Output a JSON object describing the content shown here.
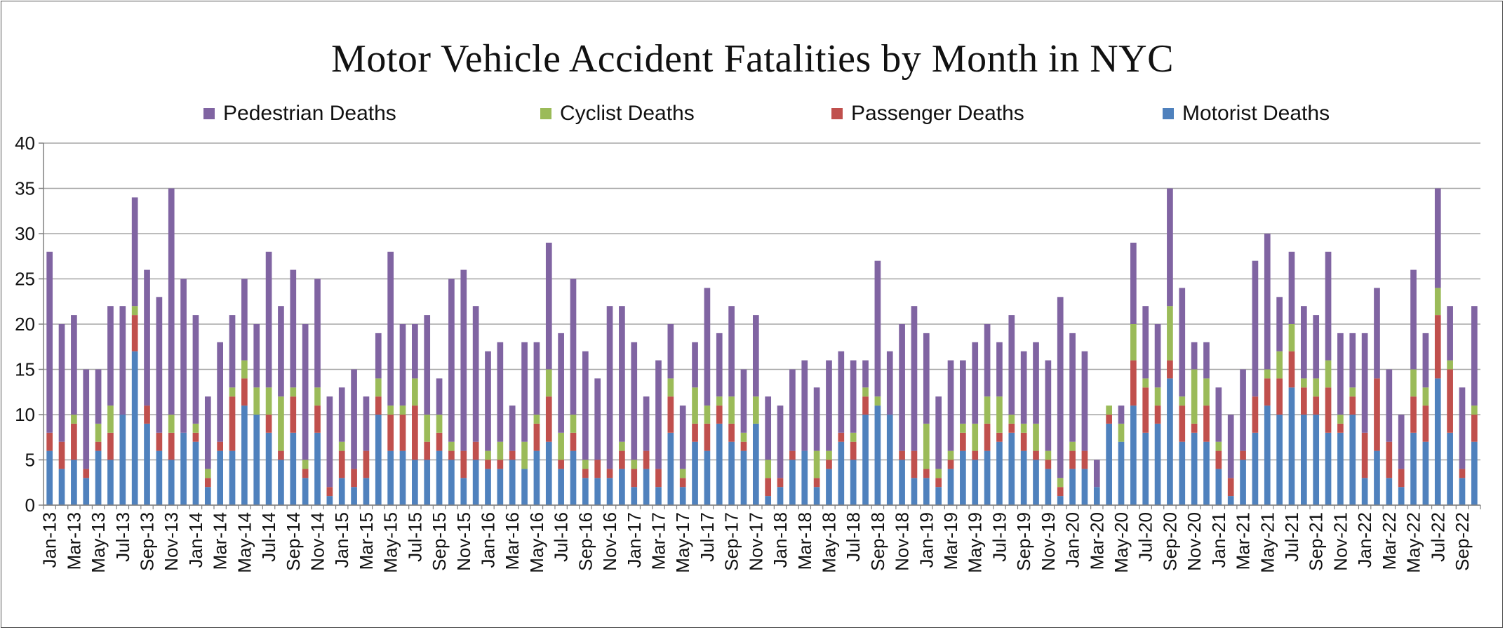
{
  "chart_data": {
    "type": "bar",
    "stacked": true,
    "title": "Motor Vehicle Accident Fatalities by Month in NYC",
    "xlabel": "",
    "ylabel": "",
    "ylim": [
      0,
      40
    ],
    "yticks": [
      0,
      5,
      10,
      15,
      20,
      25,
      30,
      35,
      40
    ],
    "grid": true,
    "legend_position": "top",
    "legend_order": [
      "Pedestrian Deaths",
      "Cyclist Deaths",
      "Passenger Deaths",
      "Motorist Deaths"
    ],
    "categories": [
      "Jan-13",
      "Feb-13",
      "Mar-13",
      "Apr-13",
      "May-13",
      "Jun-13",
      "Jul-13",
      "Aug-13",
      "Sep-13",
      "Oct-13",
      "Nov-13",
      "Dec-13",
      "Jan-14",
      "Feb-14",
      "Mar-14",
      "Apr-14",
      "May-14",
      "Jun-14",
      "Jul-14",
      "Aug-14",
      "Sep-14",
      "Oct-14",
      "Nov-14",
      "Dec-14",
      "Jan-15",
      "Feb-15",
      "Mar-15",
      "Apr-15",
      "May-15",
      "Jun-15",
      "Jul-15",
      "Aug-15",
      "Sep-15",
      "Oct-15",
      "Nov-15",
      "Dec-15",
      "Jan-16",
      "Feb-16",
      "Mar-16",
      "Apr-16",
      "May-16",
      "Jun-16",
      "Jul-16",
      "Aug-16",
      "Sep-16",
      "Oct-16",
      "Nov-16",
      "Dec-16",
      "Jan-17",
      "Feb-17",
      "Mar-17",
      "Apr-17",
      "May-17",
      "Jun-17",
      "Jul-17",
      "Aug-17",
      "Sep-17",
      "Oct-17",
      "Nov-17",
      "Dec-17",
      "Jan-18",
      "Feb-18",
      "Mar-18",
      "Apr-18",
      "May-18",
      "Jun-18",
      "Jul-18",
      "Aug-18",
      "Sep-18",
      "Oct-18",
      "Nov-18",
      "Dec-18",
      "Jan-19",
      "Feb-19",
      "Mar-19",
      "Apr-19",
      "May-19",
      "Jun-19",
      "Jul-19",
      "Aug-19",
      "Sep-19",
      "Oct-19",
      "Nov-19",
      "Dec-19",
      "Jan-20",
      "Feb-20",
      "Mar-20",
      "Apr-20",
      "May-20",
      "Jun-20",
      "Jul-20",
      "Aug-20",
      "Sep-20",
      "Oct-20",
      "Nov-20",
      "Dec-20",
      "Jan-21",
      "Feb-21",
      "Mar-21",
      "Apr-21",
      "May-21",
      "Jun-21",
      "Jul-21",
      "Aug-21",
      "Sep-21",
      "Oct-21",
      "Nov-21",
      "Dec-21",
      "Jan-22",
      "Feb-22",
      "Mar-22",
      "Apr-22",
      "May-22",
      "Jun-22",
      "Jul-22",
      "Aug-22",
      "Sep-22",
      "Oct-22"
    ],
    "series": [
      {
        "name": "Motorist Deaths",
        "color": "#4F81BD",
        "values": [
          6,
          4,
          5,
          3,
          6,
          5,
          10,
          17,
          9,
          6,
          5,
          8,
          7,
          2,
          6,
          6,
          11,
          10,
          8,
          5,
          8,
          3,
          8,
          1,
          3,
          2,
          3,
          10,
          6,
          6,
          5,
          5,
          6,
          5,
          3,
          5,
          4,
          4,
          5,
          4,
          6,
          7,
          4,
          6,
          3,
          3,
          3,
          4,
          2,
          4,
          2,
          8,
          2,
          7,
          6,
          9,
          7,
          6,
          9,
          1,
          2,
          5,
          6,
          2,
          4,
          7,
          5,
          10,
          11,
          10,
          5,
          3,
          3,
          2,
          4,
          6,
          5,
          6,
          7,
          8,
          6,
          5,
          4,
          1,
          4,
          4,
          2,
          9,
          7,
          11,
          8,
          9,
          14,
          7,
          8,
          7,
          4,
          1,
          5,
          8,
          11,
          10,
          13,
          10,
          10,
          8,
          8,
          10,
          3,
          6,
          3,
          2,
          8,
          7,
          14,
          8,
          3,
          7
        ]
      },
      {
        "name": "Passenger Deaths",
        "color": "#C0504D",
        "values": [
          2,
          3,
          4,
          1,
          1,
          3,
          0,
          4,
          2,
          2,
          3,
          0,
          1,
          1,
          1,
          6,
          3,
          0,
          2,
          1,
          4,
          1,
          3,
          1,
          3,
          2,
          3,
          2,
          4,
          4,
          6,
          2,
          2,
          1,
          3,
          2,
          1,
          1,
          1,
          0,
          3,
          5,
          1,
          2,
          1,
          2,
          1,
          2,
          2,
          2,
          2,
          4,
          1,
          2,
          3,
          2,
          2,
          1,
          0,
          2,
          1,
          1,
          0,
          1,
          1,
          1,
          2,
          2,
          0,
          0,
          1,
          3,
          1,
          1,
          1,
          2,
          1,
          3,
          1,
          1,
          2,
          1,
          1,
          1,
          2,
          2,
          0,
          1,
          0,
          5,
          5,
          2,
          2,
          4,
          1,
          4,
          2,
          2,
          1,
          4,
          3,
          4,
          4,
          3,
          2,
          5,
          1,
          2,
          5,
          8,
          4,
          2,
          4,
          4,
          7,
          7,
          1,
          3
        ]
      },
      {
        "name": "Cyclist Deaths",
        "color": "#9BBB59",
        "values": [
          0,
          0,
          1,
          0,
          2,
          3,
          0,
          1,
          0,
          0,
          2,
          0,
          1,
          1,
          0,
          1,
          2,
          3,
          3,
          6,
          1,
          1,
          2,
          0,
          1,
          0,
          0,
          2,
          1,
          1,
          3,
          3,
          2,
          1,
          0,
          0,
          1,
          2,
          0,
          3,
          1,
          3,
          3,
          2,
          1,
          0,
          0,
          1,
          1,
          0,
          0,
          2,
          1,
          4,
          2,
          1,
          3,
          1,
          3,
          2,
          0,
          0,
          0,
          3,
          1,
          0,
          1,
          1,
          1,
          0,
          0,
          0,
          5,
          1,
          1,
          1,
          3,
          3,
          4,
          1,
          1,
          3,
          1,
          1,
          1,
          0,
          0,
          1,
          2,
          4,
          1,
          2,
          6,
          1,
          6,
          3,
          1,
          0,
          0,
          0,
          1,
          3,
          3,
          1,
          2,
          3,
          1,
          1,
          0,
          0,
          0,
          0,
          3,
          2,
          3,
          1,
          0,
          1
        ]
      },
      {
        "name": "Pedestrian Deaths",
        "color": "#8064A2",
        "values": [
          20,
          13,
          11,
          11,
          6,
          11,
          12,
          12,
          15,
          15,
          25,
          17,
          12,
          8,
          11,
          8,
          9,
          7,
          15,
          10,
          13,
          15,
          12,
          10,
          6,
          11,
          6,
          5,
          17,
          9,
          6,
          11,
          4,
          18,
          20,
          15,
          11,
          11,
          5,
          11,
          8,
          14,
          11,
          15,
          12,
          9,
          18,
          15,
          13,
          6,
          12,
          6,
          7,
          5,
          13,
          7,
          10,
          7,
          9,
          7,
          8,
          9,
          10,
          7,
          10,
          9,
          8,
          3,
          15,
          7,
          14,
          16,
          10,
          8,
          10,
          7,
          9,
          8,
          6,
          11,
          8,
          9,
          10,
          20,
          12,
          11,
          3,
          0,
          2,
          9,
          8,
          7,
          13,
          12,
          3,
          4,
          6,
          7,
          9,
          15,
          15,
          6,
          8,
          8,
          7,
          12,
          9,
          6,
          11,
          10,
          8,
          6,
          11,
          6,
          11,
          6,
          9,
          11
        ]
      }
    ]
  }
}
